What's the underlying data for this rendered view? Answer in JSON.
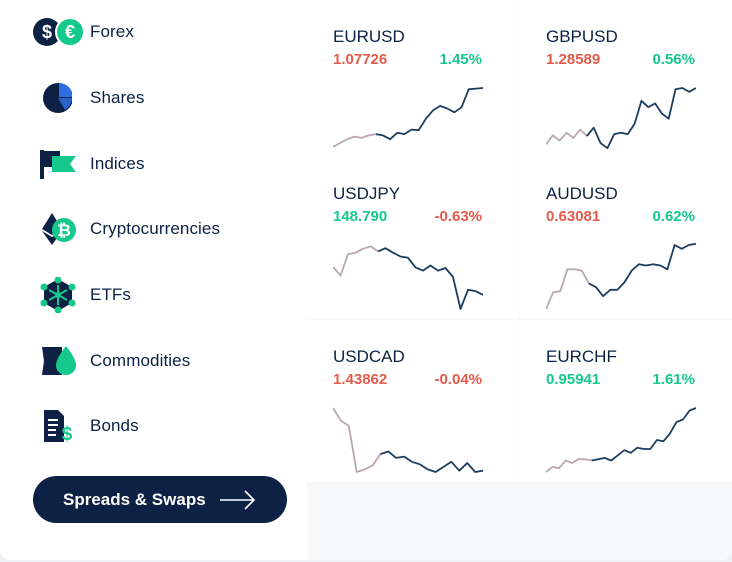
{
  "sidebar": {
    "items": [
      {
        "label": "Forex",
        "icon": "forex-icon"
      },
      {
        "label": "Shares",
        "icon": "shares-pie-icon"
      },
      {
        "label": "Indices",
        "icon": "indices-flag-icon"
      },
      {
        "label": "Cryptocurrencies",
        "icon": "bitcoin-icon"
      },
      {
        "label": "ETFs",
        "icon": "etf-network-icon"
      },
      {
        "label": "Commodities",
        "icon": "commodities-drop-icon"
      },
      {
        "label": "Bonds",
        "icon": "bonds-document-icon"
      }
    ],
    "cta_label": "Spreads & Swaps"
  },
  "colors": {
    "navy": "#0c2143",
    "up": "#14c98b",
    "down": "#e15a4a",
    "line": "#1c3d5e",
    "line_faded": "#b9a8ad"
  },
  "instruments": [
    {
      "symbol": "EURUSD",
      "price": "1.07726",
      "price_dir": "down",
      "change": "1.45%",
      "change_dir": "up",
      "series": [
        0.08,
        0.14,
        0.2,
        0.24,
        0.22,
        0.26,
        0.28,
        0.26,
        0.2,
        0.3,
        0.28,
        0.35,
        0.34,
        0.52,
        0.65,
        0.72,
        0.68,
        0.62,
        0.7,
        0.98,
        0.99,
        1.0
      ]
    },
    {
      "symbol": "GBPUSD",
      "price": "1.28589",
      "price_dir": "down",
      "change": "0.56%",
      "change_dir": "up",
      "series": [
        0.12,
        0.26,
        0.18,
        0.3,
        0.22,
        0.35,
        0.25,
        0.38,
        0.14,
        0.06,
        0.28,
        0.3,
        0.28,
        0.44,
        0.8,
        0.7,
        0.76,
        0.6,
        0.52,
        0.98,
        1.0,
        0.94,
        1.0
      ]
    },
    {
      "symbol": "USDJPY",
      "price": "148.790",
      "price_dir": "up",
      "change": "-0.63%",
      "change_dir": "down",
      "series": [
        0.66,
        0.52,
        0.86,
        0.88,
        0.94,
        0.98,
        0.9,
        0.95,
        0.88,
        0.82,
        0.8,
        0.65,
        0.6,
        0.68,
        0.6,
        0.64,
        0.5,
        0.0,
        0.3,
        0.28,
        0.22
      ]
    },
    {
      "symbol": "AUDUSD",
      "price": "0.63081",
      "price_dir": "down",
      "change": "0.62%",
      "change_dir": "up",
      "series": [
        0.0,
        0.26,
        0.28,
        0.62,
        0.62,
        0.6,
        0.4,
        0.34,
        0.2,
        0.3,
        0.3,
        0.42,
        0.6,
        0.7,
        0.68,
        0.7,
        0.68,
        0.62,
        1.0,
        0.94,
        1.0,
        1.02
      ]
    },
    {
      "symbol": "USDCAD",
      "price": "1.43862",
      "price_dir": "down",
      "change": "-0.04%",
      "change_dir": "down",
      "series": [
        1.0,
        0.8,
        0.72,
        0.0,
        0.04,
        0.1,
        0.28,
        0.32,
        0.22,
        0.24,
        0.16,
        0.12,
        0.04,
        0.0,
        0.08,
        0.16,
        0.02,
        0.14,
        0.0,
        0.02
      ]
    },
    {
      "symbol": "EURCHF",
      "price": "0.95941",
      "price_dir": "up",
      "change": "1.61%",
      "change_dir": "up",
      "series": [
        0.0,
        0.08,
        0.06,
        0.18,
        0.14,
        0.2,
        0.2,
        0.18,
        0.2,
        0.22,
        0.18,
        0.26,
        0.34,
        0.3,
        0.38,
        0.36,
        0.36,
        0.5,
        0.48,
        0.6,
        0.78,
        0.82,
        0.96,
        1.0
      ]
    }
  ]
}
